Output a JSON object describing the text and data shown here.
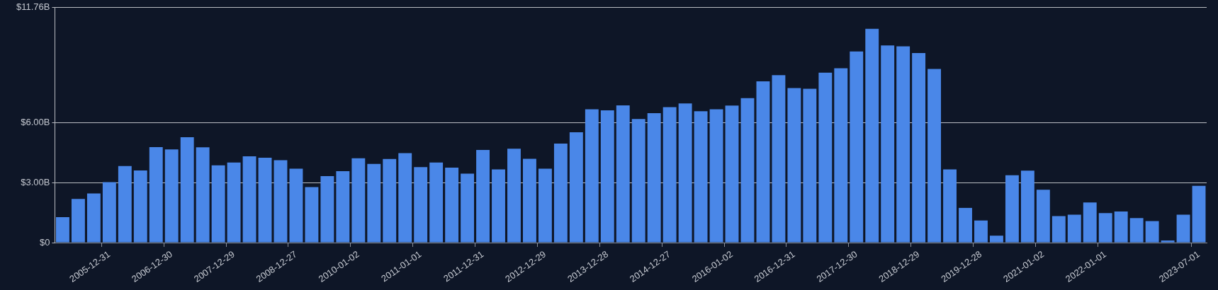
{
  "chart_data": {
    "type": "bar",
    "categories": [
      null,
      null,
      null,
      "2005-12-31",
      null,
      null,
      null,
      "2006-12-30",
      null,
      null,
      null,
      "2007-12-29",
      null,
      null,
      null,
      "2008-12-27",
      null,
      null,
      null,
      "2010-01-02",
      null,
      null,
      null,
      "2011-01-01",
      null,
      null,
      null,
      "2011-12-31",
      null,
      null,
      null,
      "2012-12-29",
      null,
      null,
      null,
      "2013-12-28",
      null,
      null,
      null,
      "2014-12-27",
      null,
      null,
      null,
      "2016-01-02",
      null,
      null,
      null,
      "2016-12-31",
      null,
      null,
      null,
      "2017-12-30",
      null,
      null,
      null,
      "2018-12-29",
      null,
      null,
      null,
      "2019-12-28",
      null,
      null,
      null,
      "2021-01-02",
      null,
      null,
      null,
      "2022-01-01",
      null,
      null,
      null,
      null,
      null,
      "2023-07-01"
    ],
    "values": [
      1.28,
      2.19,
      2.46,
      3.03,
      3.83,
      3.61,
      4.78,
      4.67,
      5.28,
      4.77,
      3.87,
      4.01,
      4.32,
      4.25,
      4.13,
      3.7,
      2.78,
      3.33,
      3.58,
      4.22,
      3.94,
      4.19,
      4.48,
      3.78,
      4.01,
      3.75,
      3.45,
      4.64,
      3.67,
      4.7,
      4.2,
      3.7,
      4.96,
      5.52,
      6.67,
      6.62,
      6.87,
      6.19,
      6.48,
      6.78,
      6.97,
      6.58,
      6.67,
      6.86,
      7.23,
      8.07,
      8.38,
      7.74,
      7.7,
      8.51,
      8.73,
      9.57,
      10.7,
      9.87,
      9.82,
      9.49,
      8.69,
      3.67,
      1.74,
      1.11,
      0.35,
      3.37,
      3.6,
      2.65,
      1.33,
      1.4,
      2.01,
      1.48,
      1.56,
      1.23,
      1.08,
      0.11,
      1.4,
      2.84
    ],
    "color": "#4a87e8",
    "ylim": [
      0,
      11.76
    ],
    "yticks": [
      {
        "value": 0,
        "label": "$0"
      },
      {
        "value": 3,
        "label": "$3.00B"
      },
      {
        "value": 6,
        "label": "$6.00B"
      },
      {
        "value": 11.76,
        "label": "$11.76B"
      }
    ],
    "grid": "y"
  }
}
